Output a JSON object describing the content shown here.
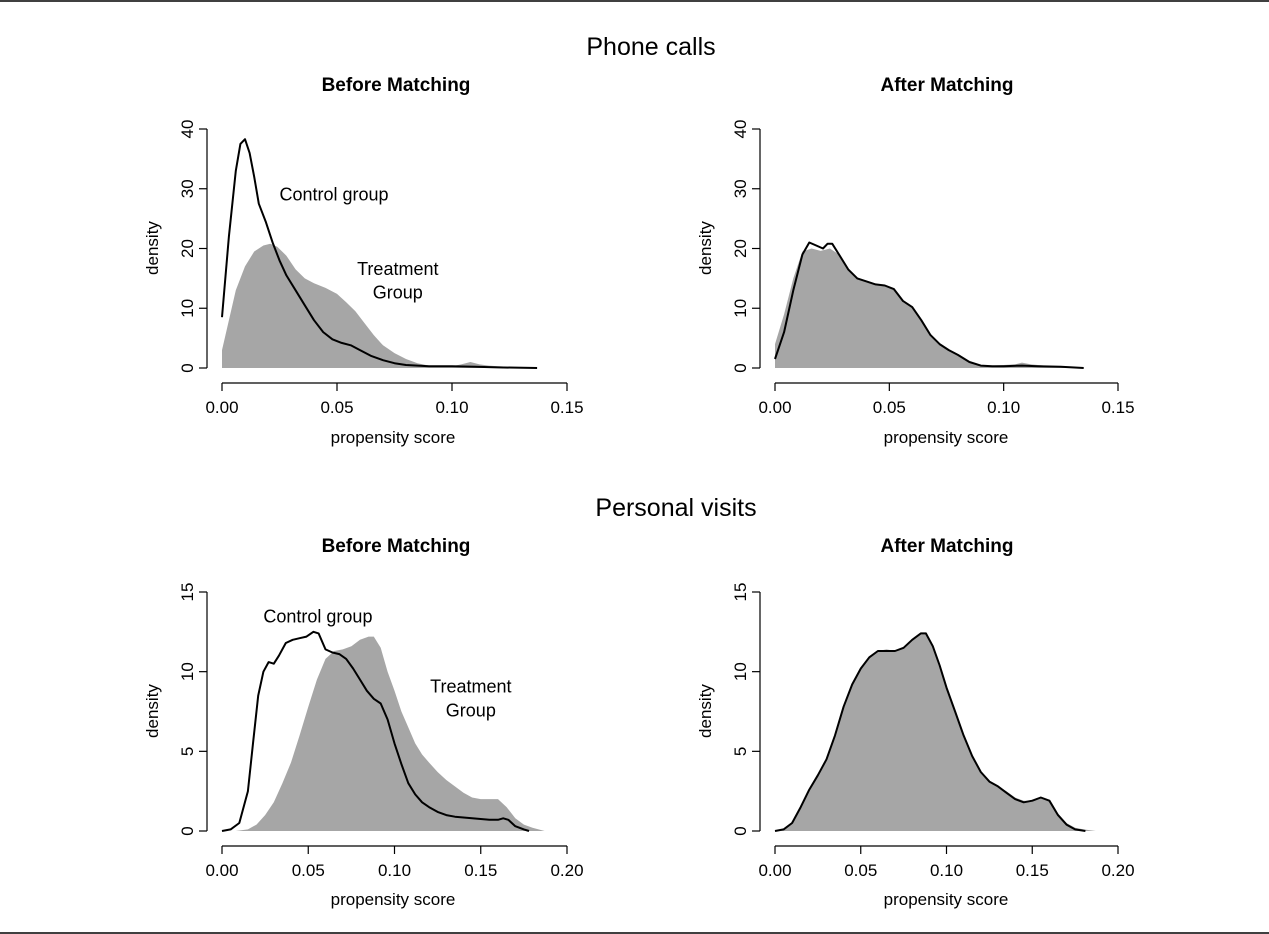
{
  "sections": [
    {
      "title": "Phone calls"
    },
    {
      "title": "Personal visits"
    }
  ],
  "chart_data": [
    {
      "type": "area",
      "title": "Before Matching",
      "xlabel": "propensity score",
      "ylabel": "density",
      "xlim": [
        0,
        0.15
      ],
      "ylim": [
        0,
        40
      ],
      "xticks": [
        "0.00",
        "0.05",
        "0.10",
        "0.15"
      ],
      "yticks": [
        "0",
        "10",
        "20",
        "30",
        "40"
      ],
      "annotations": [
        {
          "text": "Control group",
          "x": 0.025,
          "y": 28
        },
        {
          "text": "Treatment",
          "x": 0.056,
          "y": 15.6
        },
        {
          "text": "Group",
          "x": 0.056,
          "y": 11.6
        }
      ],
      "series": [
        {
          "style": "filled",
          "color": "#a6a6a6",
          "x": [
            0,
            0.003,
            0.006,
            0.01,
            0.014,
            0.018,
            0.021,
            0.024,
            0.028,
            0.032,
            0.036,
            0.04,
            0.045,
            0.05,
            0.054,
            0.058,
            0.062,
            0.066,
            0.07,
            0.075,
            0.08,
            0.085,
            0.09,
            0.095,
            0.1,
            0.104,
            0.108,
            0.112,
            0.116,
            0.12,
            0.125,
            0.13,
            0.136
          ],
          "y": [
            3,
            8,
            13,
            17,
            19.5,
            20.5,
            20.8,
            20.3,
            18.8,
            16.5,
            15,
            14.2,
            13.4,
            12.4,
            11,
            9.5,
            7.5,
            5.5,
            3.8,
            2.5,
            1.5,
            0.8,
            0.4,
            0.3,
            0.3,
            0.6,
            1,
            0.6,
            0.4,
            0.3,
            0.2,
            0.1,
            0
          ]
        },
        {
          "style": "line",
          "color": "#000000",
          "x": [
            0,
            0.003,
            0.006,
            0.008,
            0.01,
            0.012,
            0.014,
            0.016,
            0.019,
            0.022,
            0.025,
            0.028,
            0.032,
            0.036,
            0.04,
            0.044,
            0.048,
            0.052,
            0.056,
            0.06,
            0.065,
            0.07,
            0.075,
            0.08,
            0.09,
            0.1,
            0.11,
            0.12,
            0.137
          ],
          "y": [
            8.5,
            22,
            33,
            37.5,
            38.3,
            36,
            32,
            27.5,
            24.5,
            21,
            18,
            15.5,
            13,
            10.5,
            8,
            6,
            4.8,
            4.2,
            3.8,
            3,
            2,
            1.3,
            0.8,
            0.5,
            0.3,
            0.3,
            0.2,
            0.1,
            0
          ]
        }
      ]
    },
    {
      "type": "area",
      "title": "After Matching",
      "xlabel": "propensity score",
      "ylabel": "density",
      "xlim": [
        0,
        0.15
      ],
      "ylim": [
        0,
        40
      ],
      "xticks": [
        "0.00",
        "0.05",
        "0.10",
        "0.15"
      ],
      "yticks": [
        "0",
        "10",
        "20",
        "30",
        "40"
      ],
      "annotations": [],
      "series": [
        {
          "style": "filled",
          "color": "#a6a6a6",
          "x": [
            0,
            0.004,
            0.008,
            0.012,
            0.016,
            0.02,
            0.024,
            0.028,
            0.032,
            0.036,
            0.04,
            0.044,
            0.048,
            0.052,
            0.056,
            0.06,
            0.064,
            0.068,
            0.072,
            0.076,
            0.08,
            0.085,
            0.09,
            0.095,
            0.1,
            0.105,
            0.108,
            0.112,
            0.118,
            0.125,
            0.13,
            0.135
          ],
          "y": [
            4,
            9,
            15,
            19.5,
            20,
            19.6,
            20,
            19,
            16.5,
            15,
            14.5,
            14,
            13.8,
            13.2,
            11,
            10.2,
            8,
            5.5,
            4,
            3,
            2.2,
            1,
            0.5,
            0.4,
            0.5,
            0.6,
            0.9,
            0.6,
            0.4,
            0.3,
            0.1,
            0
          ]
        },
        {
          "style": "line",
          "color": "#000000",
          "x": [
            0,
            0.004,
            0.008,
            0.012,
            0.015,
            0.018,
            0.021,
            0.023,
            0.025,
            0.028,
            0.032,
            0.036,
            0.04,
            0.044,
            0.048,
            0.052,
            0.056,
            0.06,
            0.064,
            0.068,
            0.072,
            0.076,
            0.08,
            0.085,
            0.09,
            0.095,
            0.1,
            0.108,
            0.115,
            0.125,
            0.135
          ],
          "y": [
            1.5,
            6,
            13,
            19,
            21,
            20.5,
            20,
            20.8,
            20.8,
            19,
            16.5,
            15,
            14.5,
            14,
            13.8,
            13.2,
            11.2,
            10.2,
            8,
            5.5,
            4,
            3,
            2.2,
            1,
            0.4,
            0.3,
            0.3,
            0.4,
            0.3,
            0.2,
            0
          ]
        }
      ]
    },
    {
      "type": "area",
      "title": "Before Matching",
      "xlabel": "propensity score",
      "ylabel": "density",
      "xlim": [
        0,
        0.2
      ],
      "ylim": [
        0,
        15
      ],
      "xticks": [
        "0.00",
        "0.05",
        "0.10",
        "0.15",
        "0.20"
      ],
      "yticks": [
        "0",
        "5",
        "10",
        "15"
      ],
      "annotations": [
        {
          "text": "Control group",
          "x": 0.024,
          "y": 13.1
        },
        {
          "text": "Treatment",
          "x": 0.117,
          "y": 8.7
        },
        {
          "text": "Group",
          "x": 0.117,
          "y": 7.2
        }
      ],
      "series": [
        {
          "style": "filled",
          "color": "#a6a6a6",
          "x": [
            0.008,
            0.015,
            0.02,
            0.025,
            0.03,
            0.035,
            0.04,
            0.045,
            0.05,
            0.055,
            0.06,
            0.065,
            0.07,
            0.075,
            0.08,
            0.085,
            0.088,
            0.092,
            0.096,
            0.1,
            0.104,
            0.108,
            0.112,
            0.116,
            0.12,
            0.125,
            0.13,
            0.135,
            0.14,
            0.145,
            0.15,
            0.155,
            0.16,
            0.165,
            0.17,
            0.175,
            0.18,
            0.187
          ],
          "y": [
            0,
            0.1,
            0.4,
            1,
            1.8,
            3,
            4.3,
            6,
            7.8,
            9.5,
            10.8,
            11.3,
            11.4,
            11.6,
            12,
            12.2,
            12.2,
            11.5,
            10,
            8.8,
            7.5,
            6.5,
            5.5,
            4.8,
            4.3,
            3.7,
            3.2,
            2.8,
            2.4,
            2.1,
            2,
            2,
            2,
            1.5,
            0.8,
            0.4,
            0.2,
            0
          ]
        },
        {
          "style": "line",
          "color": "#000000",
          "x": [
            0,
            0.005,
            0.01,
            0.015,
            0.018,
            0.021,
            0.024,
            0.027,
            0.03,
            0.033,
            0.037,
            0.041,
            0.045,
            0.049,
            0.053,
            0.056,
            0.06,
            0.064,
            0.068,
            0.072,
            0.076,
            0.08,
            0.084,
            0.088,
            0.092,
            0.096,
            0.1,
            0.104,
            0.108,
            0.112,
            0.116,
            0.12,
            0.125,
            0.13,
            0.135,
            0.14,
            0.145,
            0.15,
            0.155,
            0.16,
            0.163,
            0.166,
            0.17,
            0.175,
            0.178
          ],
          "y": [
            0,
            0.1,
            0.5,
            2.5,
            5.5,
            8.5,
            10,
            10.6,
            10.5,
            11,
            11.8,
            12,
            12.1,
            12.2,
            12.5,
            12.4,
            11.4,
            11.2,
            11.1,
            10.8,
            10.2,
            9.5,
            8.8,
            8.3,
            8,
            7,
            5.5,
            4.2,
            3,
            2.3,
            1.8,
            1.5,
            1.2,
            1,
            0.9,
            0.85,
            0.8,
            0.75,
            0.7,
            0.7,
            0.8,
            0.7,
            0.3,
            0.1,
            0
          ]
        }
      ]
    },
    {
      "type": "area",
      "title": "After Matching",
      "xlabel": "propensity score",
      "ylabel": "density",
      "xlim": [
        0,
        0.2
      ],
      "ylim": [
        0,
        15
      ],
      "xticks": [
        "0.00",
        "0.05",
        "0.10",
        "0.15",
        "0.20"
      ],
      "yticks": [
        "0",
        "5",
        "10",
        "15"
      ],
      "annotations": [],
      "series": [
        {
          "style": "filled",
          "color": "#a6a6a6",
          "x": [
            0,
            0.005,
            0.01,
            0.015,
            0.02,
            0.025,
            0.03,
            0.035,
            0.04,
            0.045,
            0.05,
            0.055,
            0.06,
            0.065,
            0.07,
            0.075,
            0.08,
            0.085,
            0.088,
            0.092,
            0.096,
            0.1,
            0.105,
            0.11,
            0.115,
            0.12,
            0.125,
            0.13,
            0.135,
            0.14,
            0.145,
            0.15,
            0.155,
            0.16,
            0.165,
            0.17,
            0.175,
            0.18,
            0.187
          ],
          "y": [
            0,
            0.1,
            0.5,
            1.5,
            2.5,
            3.5,
            4.5,
            6.1,
            7.8,
            9.2,
            10.2,
            10.9,
            11.3,
            11.4,
            11.3,
            11.5,
            12,
            12.4,
            12.4,
            11.5,
            10.2,
            8.9,
            7.5,
            6,
            4.7,
            3.7,
            3.1,
            2.8,
            2.5,
            2.1,
            1.9,
            1.9,
            2.1,
            1.9,
            1.1,
            0.5,
            0.2,
            0.1,
            0
          ]
        },
        {
          "style": "line",
          "color": "#000000",
          "x": [
            0,
            0.005,
            0.01,
            0.015,
            0.02,
            0.025,
            0.03,
            0.035,
            0.04,
            0.045,
            0.05,
            0.055,
            0.06,
            0.065,
            0.07,
            0.075,
            0.08,
            0.085,
            0.088,
            0.092,
            0.096,
            0.1,
            0.105,
            0.11,
            0.115,
            0.12,
            0.125,
            0.13,
            0.135,
            0.14,
            0.145,
            0.15,
            0.155,
            0.16,
            0.165,
            0.17,
            0.175,
            0.181
          ],
          "y": [
            0,
            0.1,
            0.5,
            1.5,
            2.6,
            3.5,
            4.5,
            6,
            7.8,
            9.2,
            10.2,
            10.9,
            11.3,
            11.3,
            11.3,
            11.5,
            12,
            12.4,
            12.4,
            11.6,
            10.4,
            9,
            7.5,
            6,
            4.7,
            3.7,
            3.1,
            2.8,
            2.4,
            2,
            1.8,
            1.9,
            2.1,
            1.9,
            1,
            0.4,
            0.1,
            0
          ]
        }
      ]
    }
  ]
}
